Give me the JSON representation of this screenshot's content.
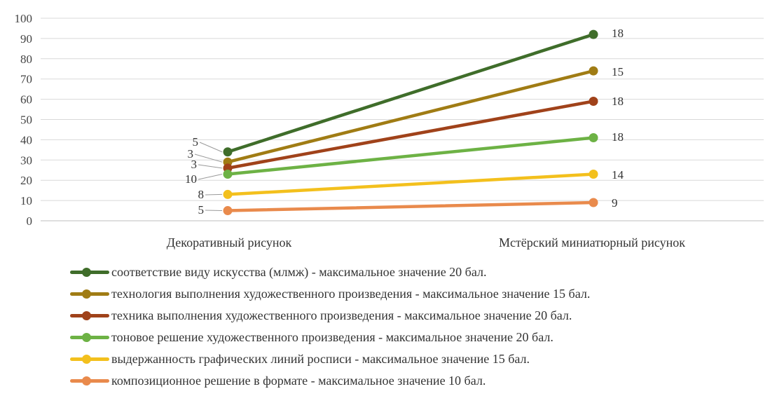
{
  "chart_data": {
    "type": "line",
    "categories": [
      "Декоративный рисунок",
      "Мстёрский миниатюрный рисунок"
    ],
    "ylim": [
      0,
      100
    ],
    "yticks": [
      0,
      10,
      20,
      30,
      40,
      50,
      60,
      70,
      80,
      90,
      100
    ],
    "grid": true,
    "legend_position": "bottom",
    "series": [
      {
        "name": "соответствие виду искусства (млмж) - максимальное значение 20 бал.",
        "color": "#3f6d2a",
        "values": [
          34,
          92
        ],
        "labels": [
          "5",
          "18"
        ]
      },
      {
        "name": "технология выполнения художественного произведения - максимальное значение 15 бал.",
        "color": "#a07c14",
        "values": [
          29,
          74
        ],
        "labels": [
          "3",
          "15"
        ]
      },
      {
        "name": "техника выполнения художественного произведения - максимальное значение 20 бал.",
        "color": "#a0421a",
        "values": [
          26,
          59
        ],
        "labels": [
          "3",
          "18"
        ]
      },
      {
        "name": "тоновое решение художественного произведения - максимальное значение 20 бал.",
        "color": "#6db245",
        "values": [
          23,
          41
        ],
        "labels": [
          "10",
          "18"
        ]
      },
      {
        "name": "выдержанность графических линий росписи - максимальное значение 15 бал.",
        "color": "#f3c01d",
        "values": [
          13,
          23
        ],
        "labels": [
          "8",
          "14"
        ]
      },
      {
        "name": "композиционное решение в формате - максимальное значение 10 бал.",
        "color": "#e98a4c",
        "values": [
          5,
          9
        ],
        "labels": [
          "5",
          "9"
        ]
      }
    ]
  }
}
